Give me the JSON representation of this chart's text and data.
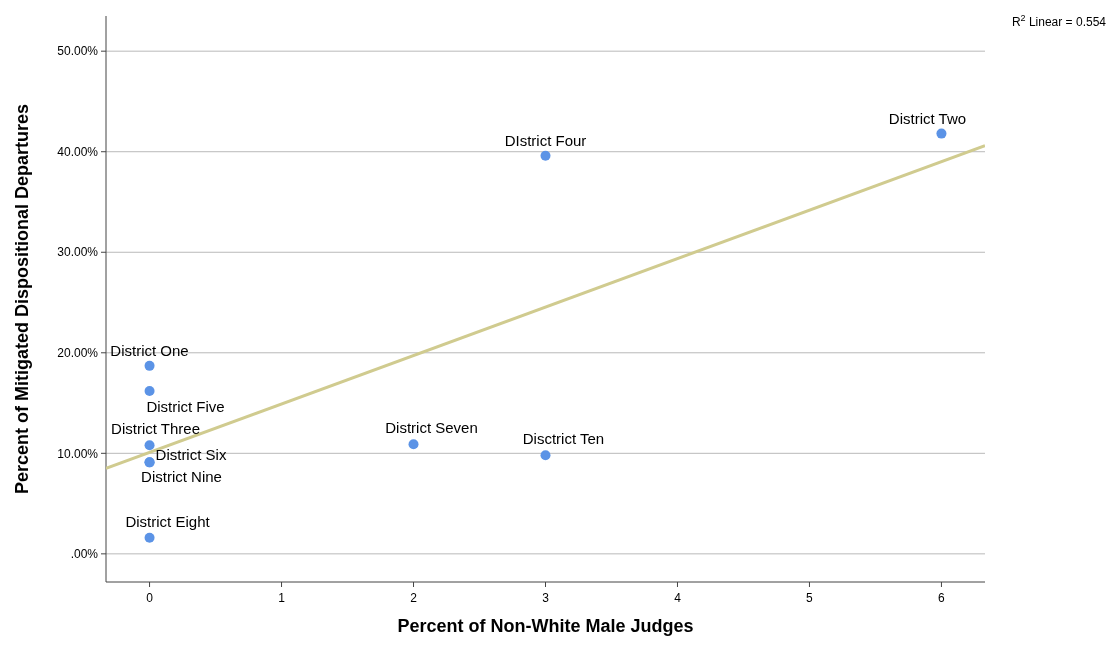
{
  "chart_data": {
    "type": "scatter",
    "xlabel": "Percent of Non-White Male Judges",
    "ylabel": "Percent of Mitigated Dispositional Departures",
    "xlim": [
      -0.33,
      6.33
    ],
    "ylim": [
      -2.8,
      53.5
    ],
    "xticks": [
      0,
      1,
      2,
      3,
      4,
      5,
      6
    ],
    "yticks": [
      {
        "value": 0,
        "label": ".00%"
      },
      {
        "value": 10,
        "label": "10.00%"
      },
      {
        "value": 20,
        "label": "20.00%"
      },
      {
        "value": 30,
        "label": "30.00%"
      },
      {
        "value": 40,
        "label": "40.00%"
      },
      {
        "value": 50,
        "label": "50.00%"
      }
    ],
    "grid": "y",
    "series": [
      {
        "marker": "circle",
        "color": "#5b93e6",
        "x": [
          0,
          6,
          0,
          3,
          0,
          0,
          0,
          2,
          0,
          3
        ],
        "values": [
          18.7,
          41.8,
          10.8,
          39.6,
          16.2,
          9.1,
          9.1,
          10.9,
          1.6,
          9.8
        ]
      },
      {
        "type": "line",
        "marker": "none",
        "color": "#d0cb8f",
        "x": [
          -0.33,
          6.33
        ],
        "values": [
          8.5,
          40.6
        ]
      }
    ],
    "annotations": [
      {
        "text": "District One",
        "x": 0,
        "y": 18.7
      },
      {
        "text": "District Two",
        "x": 6,
        "y": 41.8
      },
      {
        "text": "District Three",
        "x": 0,
        "y": 10.8
      },
      {
        "text": "DIstrict Four",
        "x": 3,
        "y": 39.6
      },
      {
        "text": "District Five",
        "x": 0,
        "y": 16.2
      },
      {
        "text": "District Six",
        "x": 0,
        "y": 9.1
      },
      {
        "text": "District Nine",
        "x": 0,
        "y": 9.1
      },
      {
        "text": "District Seven",
        "x": 2,
        "y": 10.9
      },
      {
        "text": "District Eight",
        "x": 0,
        "y": 1.6
      },
      {
        "text": "Disctrict Ten",
        "x": 3,
        "y": 9.8
      },
      "R$^{2}$ Linear = 0.554"
    ]
  }
}
